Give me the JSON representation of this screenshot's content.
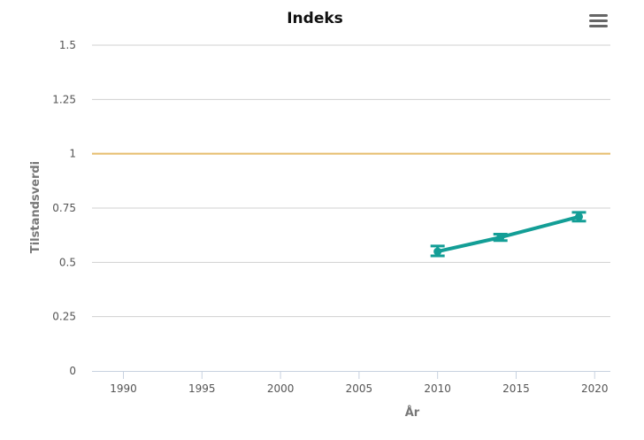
{
  "chart_data": {
    "type": "line",
    "title": "Indeks",
    "xlabel": "År",
    "ylabel": "Tilstandsverdi",
    "xlim": [
      1988,
      2021
    ],
    "ylim": [
      0,
      1.5
    ],
    "x_ticks": [
      "1990",
      "1995",
      "2000",
      "2005",
      "2010",
      "2015",
      "2020"
    ],
    "y_ticks": [
      "0",
      "0.25",
      "0.5",
      "0.75",
      "1",
      "1.25",
      "1.5"
    ],
    "grid": true,
    "reference_line": {
      "y": 1,
      "color": "#e6be6e"
    },
    "series": [
      {
        "color": "#139e96",
        "points": [
          {
            "x": 2010,
            "y": 0.55,
            "low": 0.53,
            "high": 0.575
          },
          {
            "x": 2014,
            "y": 0.615,
            "low": 0.6,
            "high": 0.63
          },
          {
            "x": 2019,
            "y": 0.71,
            "low": 0.69,
            "high": 0.73
          }
        ]
      }
    ]
  },
  "menu_icon": "hamburger-menu-icon"
}
